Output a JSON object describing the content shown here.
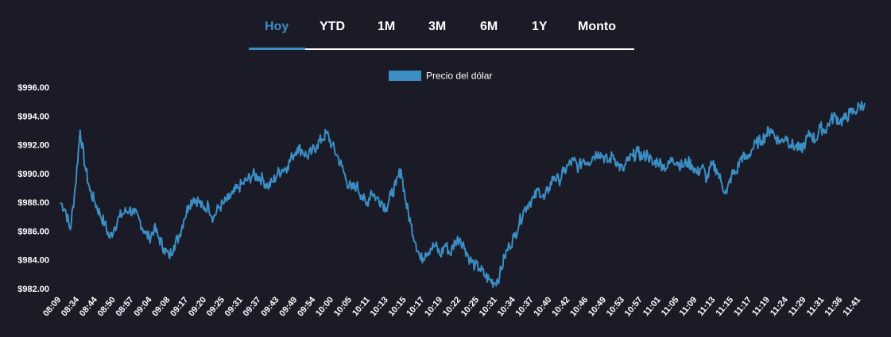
{
  "tabs": [
    {
      "label": "Hoy",
      "active": true
    },
    {
      "label": "YTD",
      "active": false
    },
    {
      "label": "1M",
      "active": false
    },
    {
      "label": "3M",
      "active": false
    },
    {
      "label": "6M",
      "active": false
    },
    {
      "label": "1Y",
      "active": false
    },
    {
      "label": "Monto",
      "active": false
    }
  ],
  "colors": {
    "background": "#1a1b27",
    "series": "#3b8fc4",
    "active_tab": "#3b8fc4",
    "text": "#ffffff"
  },
  "chart_data": {
    "type": "line",
    "legend": {
      "label": "Precio del dólar",
      "placement": "top-center"
    },
    "grid": false,
    "ylim": [
      982,
      996
    ],
    "y_ticks": [
      "$982.00",
      "$984.00",
      "$986.00",
      "$988.00",
      "$990.00",
      "$992.00",
      "$994.00",
      "$996.00"
    ],
    "x_ticks": [
      "08:09",
      "08:34",
      "08:44",
      "08:50",
      "08:57",
      "09:04",
      "09:08",
      "09:17",
      "09:20",
      "09:25",
      "09:31",
      "09:37",
      "09:43",
      "09:49",
      "09:54",
      "10:00",
      "10:05",
      "10:11",
      "10:13",
      "10:15",
      "10:17",
      "10:19",
      "10:22",
      "10:25",
      "10:31",
      "10:34",
      "10:37",
      "10:40",
      "10:42",
      "10:46",
      "10:49",
      "10:53",
      "10:57",
      "11:01",
      "11:05",
      "11:09",
      "11:13",
      "11:15",
      "11:17",
      "11:19",
      "11:24",
      "11:29",
      "11:31",
      "11:36",
      "11:41"
    ],
    "series": [
      {
        "name": "Precio del dólar",
        "values": [
          988.0,
          987.5,
          986.1,
          989.0,
          993.0,
          990.5,
          988.8,
          988.0,
          987.2,
          986.5,
          985.5,
          986.3,
          987.0,
          987.3,
          987.5,
          987.2,
          986.8,
          986.0,
          985.5,
          986.2,
          985.5,
          984.8,
          984.2,
          985.0,
          985.6,
          986.8,
          987.8,
          988.3,
          988.1,
          987.5,
          987.8,
          986.9,
          987.6,
          987.9,
          988.2,
          988.6,
          989.0,
          989.3,
          989.6,
          989.9,
          989.8,
          989.6,
          989.1,
          989.4,
          990.0,
          990.3,
          990.5,
          991.2,
          991.8,
          991.6,
          991.2,
          991.5,
          992.0,
          992.4,
          992.8,
          992.0,
          991.3,
          990.5,
          989.5,
          988.9,
          989.2,
          988.5,
          987.8,
          988.8,
          988.3,
          988.1,
          987.6,
          988.5,
          989.2,
          990.3,
          988.0,
          986.5,
          985.2,
          984.0,
          984.5,
          984.8,
          985.0,
          984.3,
          985.1,
          984.4,
          985.3,
          985.5,
          984.8,
          984.0,
          983.6,
          983.4,
          982.9,
          982.6,
          982.4,
          982.9,
          984.2,
          985.0,
          985.6,
          986.6,
          987.5,
          988.0,
          988.3,
          988.9,
          988.2,
          989.0,
          989.8,
          989.5,
          990.1,
          990.6,
          990.9,
          990.4,
          991.0,
          990.8,
          991.2,
          991.5,
          991.2,
          990.8,
          991.3,
          990.6,
          990.2,
          990.9,
          991.2,
          991.5,
          991.1,
          991.4,
          990.6,
          990.9,
          990.6,
          990.4,
          991.1,
          990.8,
          990.5,
          990.8,
          990.6,
          990.0,
          990.5,
          989.6,
          990.6,
          990.3,
          989.3,
          988.6,
          989.9,
          990.1,
          991.2,
          991.0,
          991.6,
          992.1,
          992.3,
          992.7,
          993.1,
          992.5,
          992.2,
          992.6,
          992.0,
          991.9,
          991.6,
          992.2,
          992.8,
          992.3,
          993.2,
          993.0,
          993.7,
          994.0,
          993.6,
          993.8,
          994.2,
          994.3,
          994.7,
          994.9
        ]
      }
    ]
  }
}
